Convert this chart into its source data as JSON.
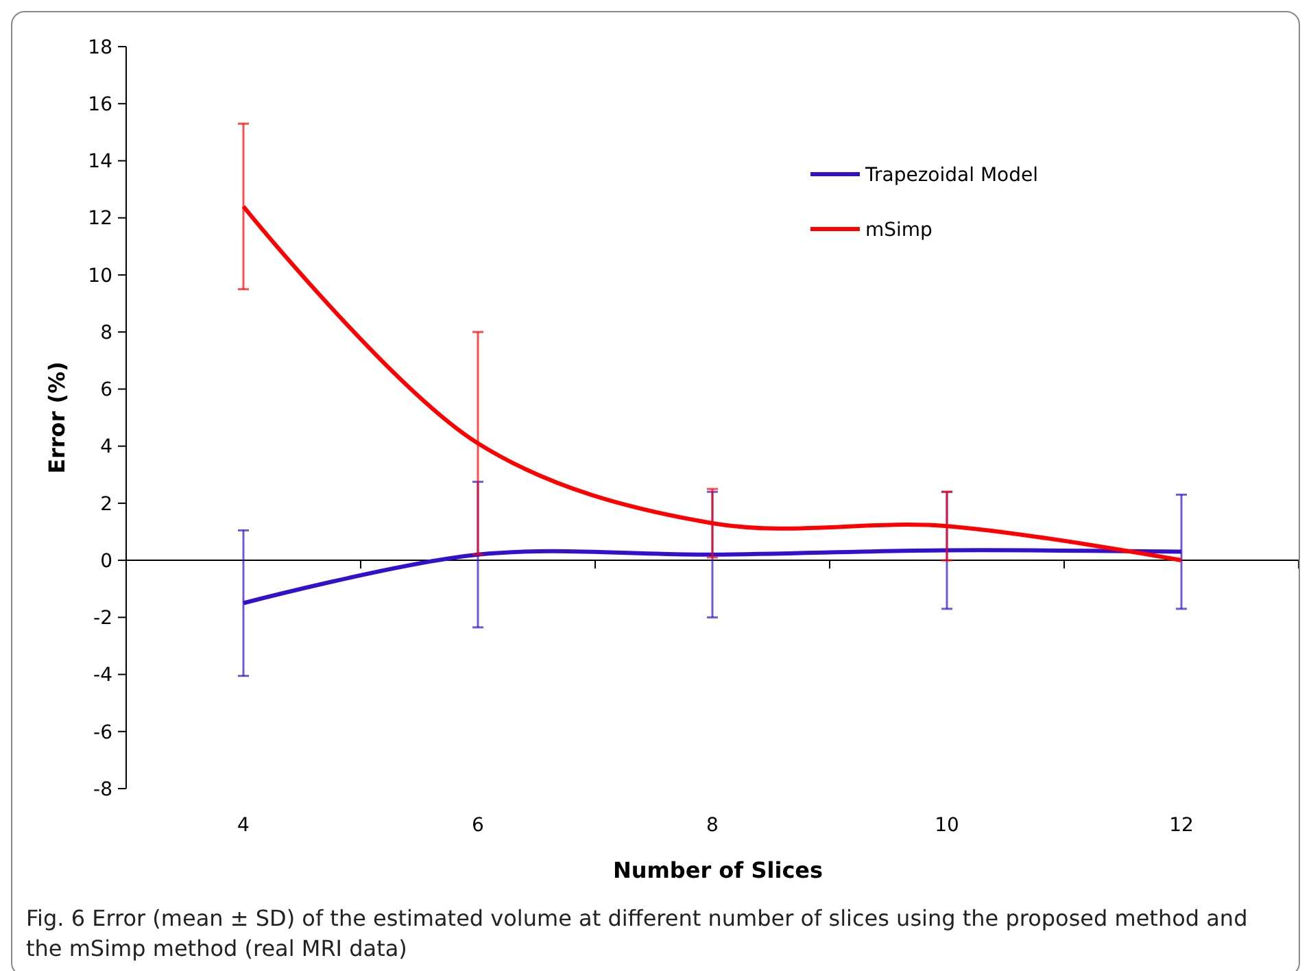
{
  "chart_data": {
    "type": "line",
    "xlabel": "Number of Slices",
    "ylabel": "Error (%)",
    "categories": [
      "4",
      "6",
      "8",
      "10",
      "12"
    ],
    "series": [
      {
        "name": "Trapezoidal Model",
        "color": "#3311cc",
        "values": [
          -1.5,
          0.2,
          0.2,
          0.35,
          0.3
        ],
        "errors": [
          2.55,
          2.55,
          2.2,
          2.05,
          2.0
        ]
      },
      {
        "name": "mSimp",
        "color": "#ff0000",
        "values": [
          12.4,
          4.1,
          1.3,
          1.2,
          0
        ],
        "errors": [
          2.9,
          3.9,
          1.2,
          1.2,
          null
        ]
      }
    ],
    "ylim": [
      -8,
      18
    ],
    "yticks": [
      -8,
      -6,
      -4,
      -2,
      0,
      2,
      4,
      6,
      8,
      10,
      12,
      14,
      16,
      18
    ],
    "legend": "top right",
    "marker": "none",
    "line_style": "solid",
    "annotations": [
      "Fig. 6  Error (mean ± SD) of the estimated volume at different number of slices using the proposed method and the mSimp method (real MRI data)"
    ]
  }
}
